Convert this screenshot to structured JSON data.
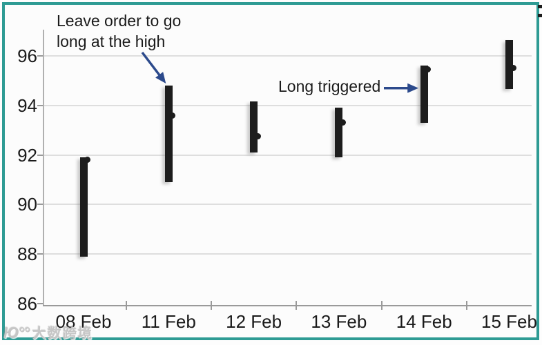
{
  "colors": {
    "frame": "#2e9b94",
    "bar": "#1d1d1d",
    "arrow": "#2c4a8c",
    "grid": "#dedede",
    "axis": "#9a9a9a",
    "text": "#1a1a1a",
    "watermark": "#c6c6c6"
  },
  "chart_data": {
    "type": "hlc_bar",
    "title": "",
    "xlabel": "",
    "ylabel": "",
    "categories": [
      "08 Feb",
      "11 Feb",
      "12 Feb",
      "13 Feb",
      "14 Feb",
      "15 Feb"
    ],
    "bars": [
      {
        "date": "08 Feb",
        "high": 91.9,
        "low": 87.9,
        "close": 91.8
      },
      {
        "date": "11 Feb",
        "high": 94.8,
        "low": 90.9,
        "close": 93.6
      },
      {
        "date": "12 Feb",
        "high": 94.15,
        "low": 92.1,
        "close": 92.75
      },
      {
        "date": "13 Feb",
        "high": 93.9,
        "low": 91.9,
        "close": 93.3
      },
      {
        "date": "14 Feb",
        "high": 95.6,
        "low": 93.3,
        "close": 95.45
      },
      {
        "date": "15 Feb",
        "high": 96.65,
        "low": 94.65,
        "close": 95.5
      }
    ],
    "ylim": [
      86,
      97
    ],
    "yticks": [
      96,
      94,
      92,
      90,
      88,
      86
    ],
    "grid": "horizontal-light",
    "legend": "none",
    "annotations": [
      {
        "lines": [
          "Leave order to go",
          "long at the high"
        ],
        "target_date": "11 Feb",
        "target_value": 94.8,
        "arrow_direction": "down-right"
      },
      {
        "lines": [
          "Long triggered"
        ],
        "target_date": "14 Feb",
        "target_value": 94.7,
        "arrow_direction": "right"
      }
    ]
  },
  "watermark": {
    "logo": "Ю°°",
    "text": "大数跨境"
  }
}
